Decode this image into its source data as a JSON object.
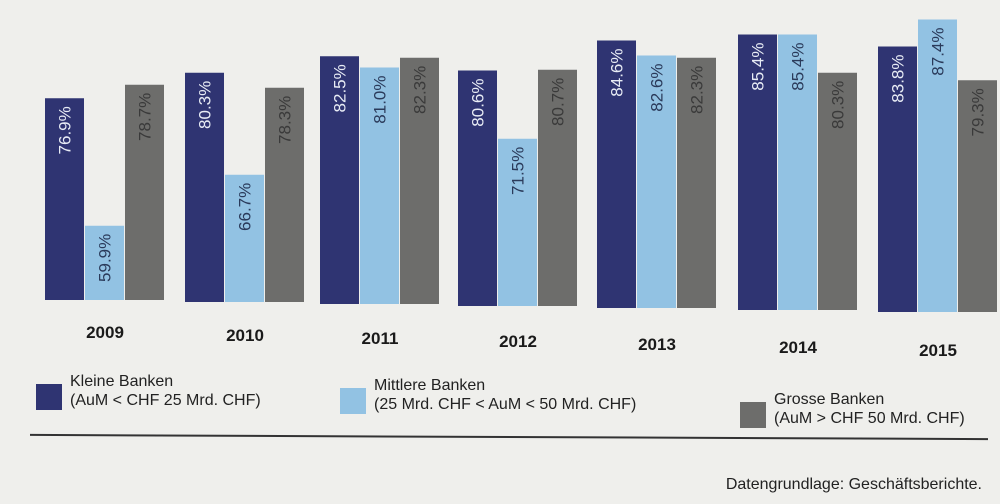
{
  "chart_data": {
    "type": "bar",
    "categories": [
      "2009",
      "2010",
      "2011",
      "2012",
      "2013",
      "2014",
      "2015"
    ],
    "series": [
      {
        "name": "Kleine Banken",
        "sublabel": "(AuM < CHF 25 Mrd. CHF)",
        "color": "#2f3472",
        "values": [
          76.9,
          80.3,
          82.5,
          80.6,
          84.6,
          85.4,
          83.8
        ]
      },
      {
        "name": "Mittlere Banken",
        "sublabel": "(25 Mrd. CHF < AuM < 50 Mrd. CHF)",
        "color": "#92c2e3",
        "values": [
          59.9,
          66.7,
          81.0,
          71.5,
          82.6,
          85.4,
          87.4
        ]
      },
      {
        "name": "Grosse Banken",
        "sublabel": "(AuM > CHF 50 Mrd. CHF)",
        "color": "#6d6d6b",
        "values": [
          78.7,
          78.3,
          82.3,
          80.7,
          82.3,
          80.3,
          79.3
        ]
      }
    ],
    "value_format": "percent, one decimal",
    "ylim": [
      50,
      90
    ],
    "grid": false,
    "legend": "bottom"
  },
  "source": "Datengrundlage: Geschäftsberichte."
}
